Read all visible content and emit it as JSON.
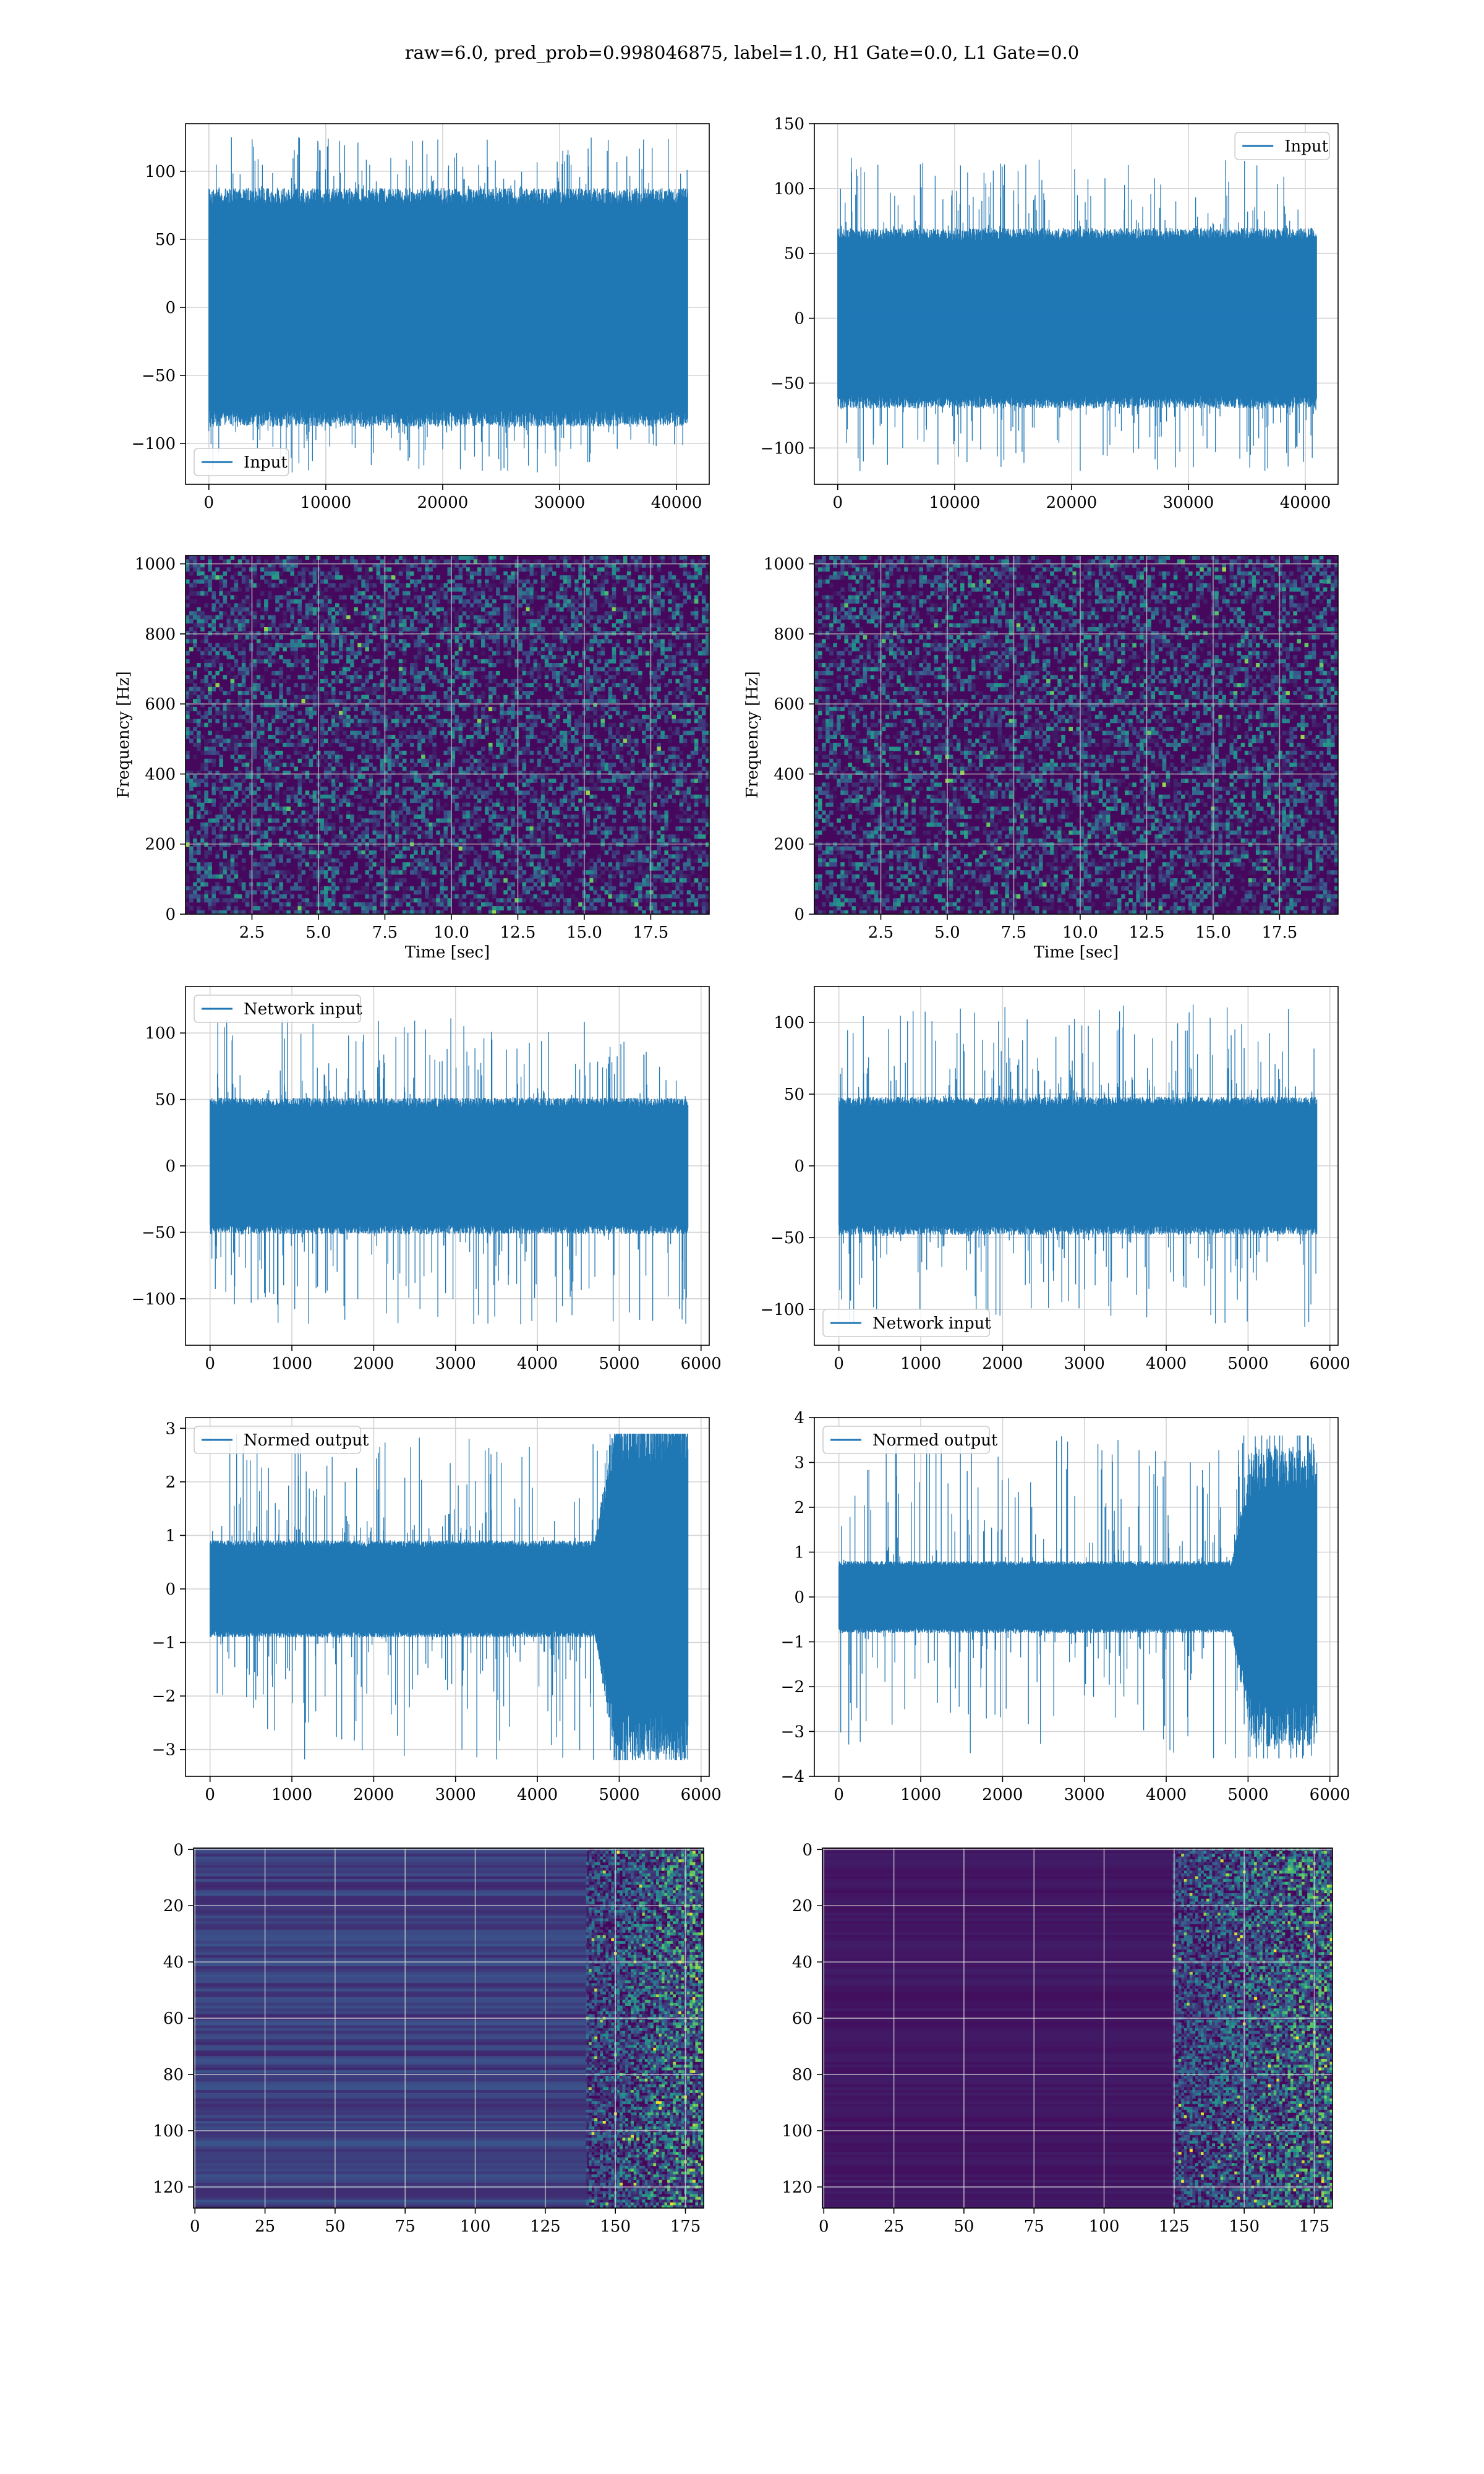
{
  "figure": {
    "title": "raw=6.0, pred_prob=0.998046875, label=1.0, H1 Gate=0.0, L1 Gate=0.0",
    "colors": {
      "line": "#1f77b4",
      "grid": "#d4d4d4",
      "spec_bg": "#3b1f5a",
      "spec_mid": "#2a788e",
      "spec_hot": "#35b779",
      "spec_peak": "#d5e21a",
      "heat_bg": "#46085c"
    }
  },
  "chart_data": [
    {
      "id": "input-left",
      "type": "line",
      "title": "",
      "xlim": [
        -2000,
        42800
      ],
      "ylim": [
        -130,
        135
      ],
      "xticks": [
        "0",
        "10000",
        "20000",
        "30000",
        "40000"
      ],
      "xtick_values": [
        0,
        10000,
        20000,
        30000,
        40000
      ],
      "yticks": [
        "−100",
        "−50",
        "0",
        "50",
        "100"
      ],
      "ytick_values": [
        -100,
        -50,
        0,
        50,
        100
      ],
      "xlabel": "",
      "ylabel": "",
      "grid": true,
      "legend": "lower-left",
      "series": [
        {
          "name": "Input",
          "x_range": [
            0,
            40960
          ],
          "band_abs": 82,
          "spike_max": 125,
          "spike_min": -122,
          "tail_boost": 0
        }
      ]
    },
    {
      "id": "input-right",
      "type": "line",
      "title": "",
      "xlim": [
        -2000,
        42800
      ],
      "ylim": [
        -128,
        150
      ],
      "xticks": [
        "0",
        "10000",
        "20000",
        "30000",
        "40000"
      ],
      "xtick_values": [
        0,
        10000,
        20000,
        30000,
        40000
      ],
      "yticks": [
        "−100",
        "−50",
        "0",
        "50",
        "100",
        "150"
      ],
      "ytick_values": [
        -100,
        -50,
        0,
        50,
        100,
        150
      ],
      "xlabel": "",
      "ylabel": "",
      "grid": true,
      "legend": "upper-right",
      "series": [
        {
          "name": "Input",
          "x_range": [
            0,
            40960
          ],
          "band_abs": 65,
          "spike_max": 125,
          "spike_min": -118,
          "tail_boost": 0
        }
      ]
    },
    {
      "id": "spectrogram-left",
      "type": "heatmap",
      "title": "",
      "xlim": [
        0,
        19.7
      ],
      "ylim": [
        0,
        1024
      ],
      "xticks": [
        "2.5",
        "5.0",
        "7.5",
        "10.0",
        "12.5",
        "15.0",
        "17.5"
      ],
      "xtick_values": [
        2.5,
        5.0,
        7.5,
        10.0,
        12.5,
        15.0,
        17.5
      ],
      "yticks": [
        "0",
        "200",
        "400",
        "600",
        "800",
        "1000"
      ],
      "ytick_values": [
        0,
        200,
        400,
        600,
        800,
        1000
      ],
      "xlabel": "Time [sec]",
      "ylabel": "Frequency [Hz]",
      "grid": true
    },
    {
      "id": "spectrogram-right",
      "type": "heatmap",
      "title": "",
      "xlim": [
        0,
        19.7
      ],
      "ylim": [
        0,
        1024
      ],
      "xticks": [
        "2.5",
        "5.0",
        "7.5",
        "10.0",
        "12.5",
        "15.0",
        "17.5"
      ],
      "xtick_values": [
        2.5,
        5.0,
        7.5,
        10.0,
        12.5,
        15.0,
        17.5
      ],
      "yticks": [
        "0",
        "200",
        "400",
        "600",
        "800",
        "1000"
      ],
      "ytick_values": [
        0,
        200,
        400,
        600,
        800,
        1000
      ],
      "xlabel": "Time [sec]",
      "ylabel": "Frequency [Hz]",
      "grid": true
    },
    {
      "id": "network-input-left",
      "type": "line",
      "title": "",
      "xlim": [
        -300,
        6100
      ],
      "ylim": [
        -135,
        135
      ],
      "xticks": [
        "0",
        "1000",
        "2000",
        "3000",
        "4000",
        "5000",
        "6000"
      ],
      "xtick_values": [
        0,
        1000,
        2000,
        3000,
        4000,
        5000,
        6000
      ],
      "yticks": [
        "−100",
        "−50",
        "0",
        "50",
        "100"
      ],
      "ytick_values": [
        -100,
        -50,
        0,
        50,
        100
      ],
      "xlabel": "",
      "ylabel": "",
      "grid": true,
      "legend": "upper-left",
      "series": [
        {
          "name": "Network input",
          "x_range": [
            0,
            5840
          ],
          "band_abs": 48,
          "spike_max": 112,
          "spike_min": -120,
          "tail_boost": 0
        }
      ]
    },
    {
      "id": "network-input-right",
      "type": "line",
      "title": "",
      "xlim": [
        -300,
        6100
      ],
      "ylim": [
        -125,
        125
      ],
      "xticks": [
        "0",
        "1000",
        "2000",
        "3000",
        "4000",
        "5000",
        "6000"
      ],
      "xtick_values": [
        0,
        1000,
        2000,
        3000,
        4000,
        5000,
        6000
      ],
      "yticks": [
        "−100",
        "−50",
        "0",
        "50",
        "100"
      ],
      "ytick_values": [
        -100,
        -50,
        0,
        50,
        100
      ],
      "xlabel": "",
      "ylabel": "",
      "grid": true,
      "legend": "lower-left",
      "series": [
        {
          "name": "Network input",
          "x_range": [
            0,
            5840
          ],
          "band_abs": 45,
          "spike_max": 113,
          "spike_min": -113,
          "tail_boost": 0
        }
      ]
    },
    {
      "id": "normed-output-left",
      "type": "line",
      "title": "",
      "xlim": [
        -300,
        6100
      ],
      "ylim": [
        -3.5,
        3.2
      ],
      "xticks": [
        "0",
        "1000",
        "2000",
        "3000",
        "4000",
        "5000",
        "6000"
      ],
      "xtick_values": [
        0,
        1000,
        2000,
        3000,
        4000,
        5000,
        6000
      ],
      "yticks": [
        "−3",
        "−2",
        "−1",
        "0",
        "1",
        "2",
        "3"
      ],
      "ytick_values": [
        -3,
        -2,
        -1,
        0,
        1,
        2,
        3
      ],
      "xlabel": "",
      "ylabel": "",
      "grid": true,
      "legend": "upper-left",
      "series": [
        {
          "name": "Normed output",
          "x_range": [
            0,
            5840
          ],
          "band_abs": 0.85,
          "spike_max": 2.9,
          "spike_min": -3.2,
          "tail_boost": 2.4,
          "tail_start": 4700
        }
      ]
    },
    {
      "id": "normed-output-right",
      "type": "line",
      "title": "",
      "xlim": [
        -300,
        6100
      ],
      "ylim": [
        -4,
        4
      ],
      "xticks": [
        "0",
        "1000",
        "2000",
        "3000",
        "4000",
        "5000",
        "6000"
      ],
      "xtick_values": [
        0,
        1000,
        2000,
        3000,
        4000,
        5000,
        6000
      ],
      "yticks": [
        "−4",
        "−3",
        "−2",
        "−1",
        "0",
        "1",
        "2",
        "3",
        "4"
      ],
      "ytick_values": [
        -4,
        -3,
        -2,
        -1,
        0,
        1,
        2,
        3,
        4
      ],
      "xlabel": "",
      "ylabel": "",
      "grid": true,
      "legend": "upper-left",
      "series": [
        {
          "name": "Normed output",
          "x_range": [
            0,
            5840
          ],
          "band_abs": 0.75,
          "spike_max": 3.6,
          "spike_min": -3.6,
          "tail_boost": 2.6,
          "tail_start": 4800
        }
      ]
    },
    {
      "id": "activation-left",
      "type": "heatmap",
      "title": "",
      "xlim": [
        -0.5,
        181.5
      ],
      "ylim": [
        127.5,
        -0.5
      ],
      "xticks": [
        "0",
        "25",
        "50",
        "75",
        "100",
        "125",
        "150",
        "175"
      ],
      "xtick_values": [
        0,
        25,
        50,
        75,
        100,
        125,
        150,
        175
      ],
      "yticks": [
        "0",
        "20",
        "40",
        "60",
        "80",
        "100",
        "120"
      ],
      "ytick_values": [
        0,
        20,
        40,
        60,
        80,
        100,
        120
      ],
      "xlabel": "",
      "ylabel": "",
      "grid": true,
      "rows": 128,
      "cols": 182,
      "bright_from_col": 140
    },
    {
      "id": "activation-right",
      "type": "heatmap",
      "title": "",
      "xlim": [
        -0.5,
        181.5
      ],
      "ylim": [
        127.5,
        -0.5
      ],
      "xticks": [
        "0",
        "25",
        "50",
        "75",
        "100",
        "125",
        "150",
        "175"
      ],
      "xtick_values": [
        0,
        25,
        50,
        75,
        100,
        125,
        150,
        175
      ],
      "yticks": [
        "0",
        "20",
        "40",
        "60",
        "80",
        "100",
        "120"
      ],
      "ytick_values": [
        0,
        20,
        40,
        60,
        80,
        100,
        120
      ],
      "xlabel": "",
      "ylabel": "",
      "grid": true,
      "rows": 128,
      "cols": 182,
      "bright_from_col": 125
    }
  ]
}
